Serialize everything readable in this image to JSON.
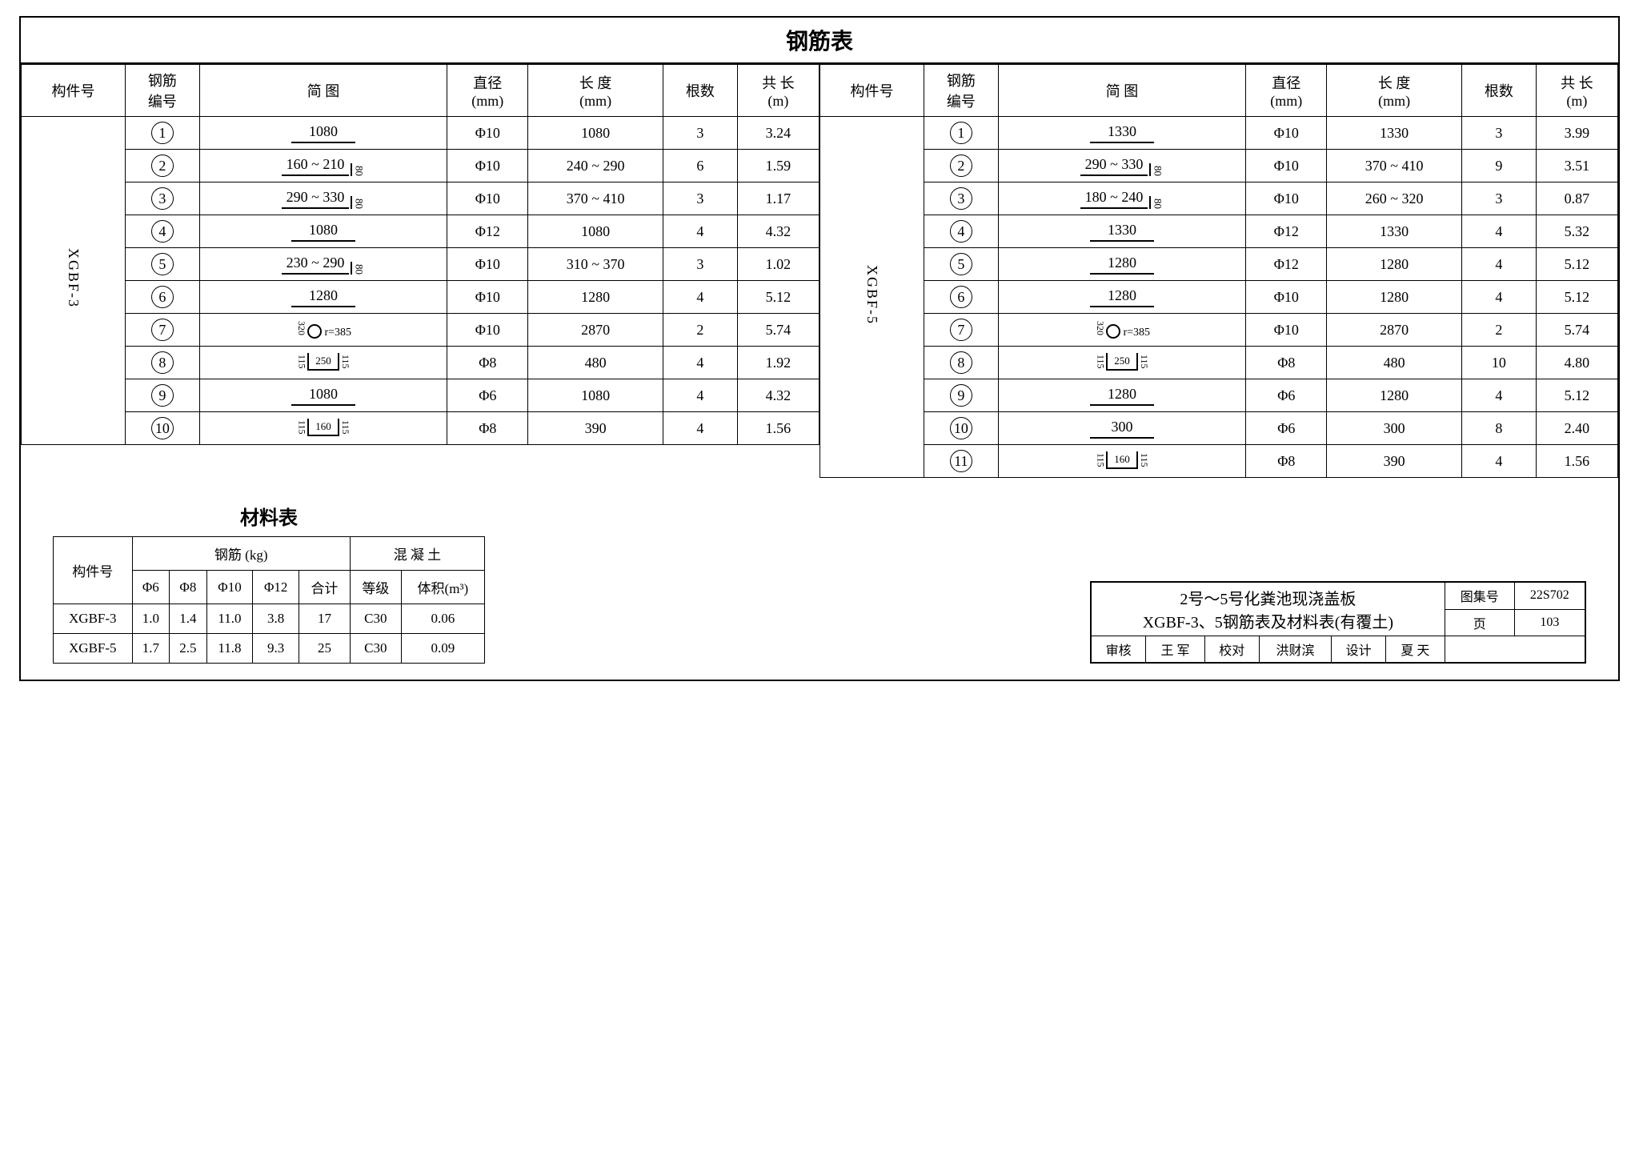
{
  "main_title": "钢筋表",
  "headers": {
    "component": "构件号",
    "rebar_no": "钢筋\n编号",
    "diagram": "简  图",
    "diameter": "直径\n(mm)",
    "length": "长 度\n(mm)",
    "count": "根数",
    "total": "共 长\n(m)"
  },
  "left": {
    "component": "XGBF-3",
    "rows": [
      {
        "no": "1",
        "diag": {
          "type": "line",
          "text": "1080"
        },
        "dia": "Φ10",
        "len": "1080",
        "cnt": "3",
        "tot": "3.24"
      },
      {
        "no": "2",
        "diag": {
          "type": "bent",
          "text": "160 ~ 210",
          "v": "80"
        },
        "dia": "Φ10",
        "len": "240 ~ 290",
        "cnt": "6",
        "tot": "1.59"
      },
      {
        "no": "3",
        "diag": {
          "type": "bent",
          "text": "290 ~ 330",
          "v": "80"
        },
        "dia": "Φ10",
        "len": "370 ~ 410",
        "cnt": "3",
        "tot": "1.17"
      },
      {
        "no": "4",
        "diag": {
          "type": "line",
          "text": "1080"
        },
        "dia": "Φ12",
        "len": "1080",
        "cnt": "4",
        "tot": "4.32"
      },
      {
        "no": "5",
        "diag": {
          "type": "bent",
          "text": "230 ~ 290",
          "v": "80"
        },
        "dia": "Φ10",
        "len": "310 ~ 370",
        "cnt": "3",
        "tot": "1.02"
      },
      {
        "no": "6",
        "diag": {
          "type": "line",
          "text": "1280"
        },
        "dia": "Φ10",
        "len": "1280",
        "cnt": "4",
        "tot": "5.12"
      },
      {
        "no": "7",
        "diag": {
          "type": "hook",
          "text": "r=385",
          "v": "320"
        },
        "dia": "Φ10",
        "len": "2870",
        "cnt": "2",
        "tot": "5.74"
      },
      {
        "no": "8",
        "diag": {
          "type": "stirrup",
          "text": "250",
          "v": "115"
        },
        "dia": "Φ8",
        "len": "480",
        "cnt": "4",
        "tot": "1.92"
      },
      {
        "no": "9",
        "diag": {
          "type": "line",
          "text": "1080"
        },
        "dia": "Φ6",
        "len": "1080",
        "cnt": "4",
        "tot": "4.32"
      },
      {
        "no": "10",
        "diag": {
          "type": "stirrup",
          "text": "160",
          "v": "115"
        },
        "dia": "Φ8",
        "len": "390",
        "cnt": "4",
        "tot": "1.56"
      }
    ]
  },
  "right": {
    "component": "XGBF-5",
    "rows": [
      {
        "no": "1",
        "diag": {
          "type": "line",
          "text": "1330"
        },
        "dia": "Φ10",
        "len": "1330",
        "cnt": "3",
        "tot": "3.99"
      },
      {
        "no": "2",
        "diag": {
          "type": "bent",
          "text": "290 ~ 330",
          "v": "80"
        },
        "dia": "Φ10",
        "len": "370 ~ 410",
        "cnt": "9",
        "tot": "3.51"
      },
      {
        "no": "3",
        "diag": {
          "type": "bent",
          "text": "180 ~ 240",
          "v": "80"
        },
        "dia": "Φ10",
        "len": "260 ~ 320",
        "cnt": "3",
        "tot": "0.87"
      },
      {
        "no": "4",
        "diag": {
          "type": "line",
          "text": "1330"
        },
        "dia": "Φ12",
        "len": "1330",
        "cnt": "4",
        "tot": "5.32"
      },
      {
        "no": "5",
        "diag": {
          "type": "line",
          "text": "1280"
        },
        "dia": "Φ12",
        "len": "1280",
        "cnt": "4",
        "tot": "5.12"
      },
      {
        "no": "6",
        "diag": {
          "type": "line",
          "text": "1280"
        },
        "dia": "Φ10",
        "len": "1280",
        "cnt": "4",
        "tot": "5.12"
      },
      {
        "no": "7",
        "diag": {
          "type": "hook",
          "text": "r=385",
          "v": "320"
        },
        "dia": "Φ10",
        "len": "2870",
        "cnt": "2",
        "tot": "5.74"
      },
      {
        "no": "8",
        "diag": {
          "type": "stirrup",
          "text": "250",
          "v": "115"
        },
        "dia": "Φ8",
        "len": "480",
        "cnt": "10",
        "tot": "4.80"
      },
      {
        "no": "9",
        "diag": {
          "type": "line",
          "text": "1280"
        },
        "dia": "Φ6",
        "len": "1280",
        "cnt": "4",
        "tot": "5.12"
      },
      {
        "no": "10",
        "diag": {
          "type": "line",
          "text": "300"
        },
        "dia": "Φ6",
        "len": "300",
        "cnt": "8",
        "tot": "2.40"
      },
      {
        "no": "11",
        "diag": {
          "type": "stirrup",
          "text": "160",
          "v": "115"
        },
        "dia": "Φ8",
        "len": "390",
        "cnt": "4",
        "tot": "1.56"
      }
    ]
  },
  "material": {
    "title": "材料表",
    "headers": {
      "component": "构件号",
      "rebar": "钢筋 (kg)",
      "concrete": "混 凝 土",
      "d6": "Φ6",
      "d8": "Φ8",
      "d10": "Φ10",
      "d12": "Φ12",
      "total": "合计",
      "grade": "等级",
      "volume": "体积(m³)"
    },
    "rows": [
      {
        "comp": "XGBF-3",
        "d6": "1.0",
        "d8": "1.4",
        "d10": "11.0",
        "d12": "3.8",
        "total": "17",
        "grade": "C30",
        "vol": "0.06"
      },
      {
        "comp": "XGBF-5",
        "d6": "1.7",
        "d8": "2.5",
        "d10": "11.8",
        "d12": "9.3",
        "total": "25",
        "grade": "C30",
        "vol": "0.09"
      }
    ]
  },
  "titleblock": {
    "line1": "2号～5号化粪池现浇盖板",
    "line2": "XGBF-3、5钢筋表及材料表(有覆土)",
    "set_label": "图集号",
    "set_no": "22S702",
    "page_label": "页",
    "page_no": "103",
    "review_lbl": "审核",
    "review": "王 军",
    "check_lbl": "校对",
    "check": "洪财滨",
    "design_lbl": "设计",
    "design": "夏 天"
  }
}
